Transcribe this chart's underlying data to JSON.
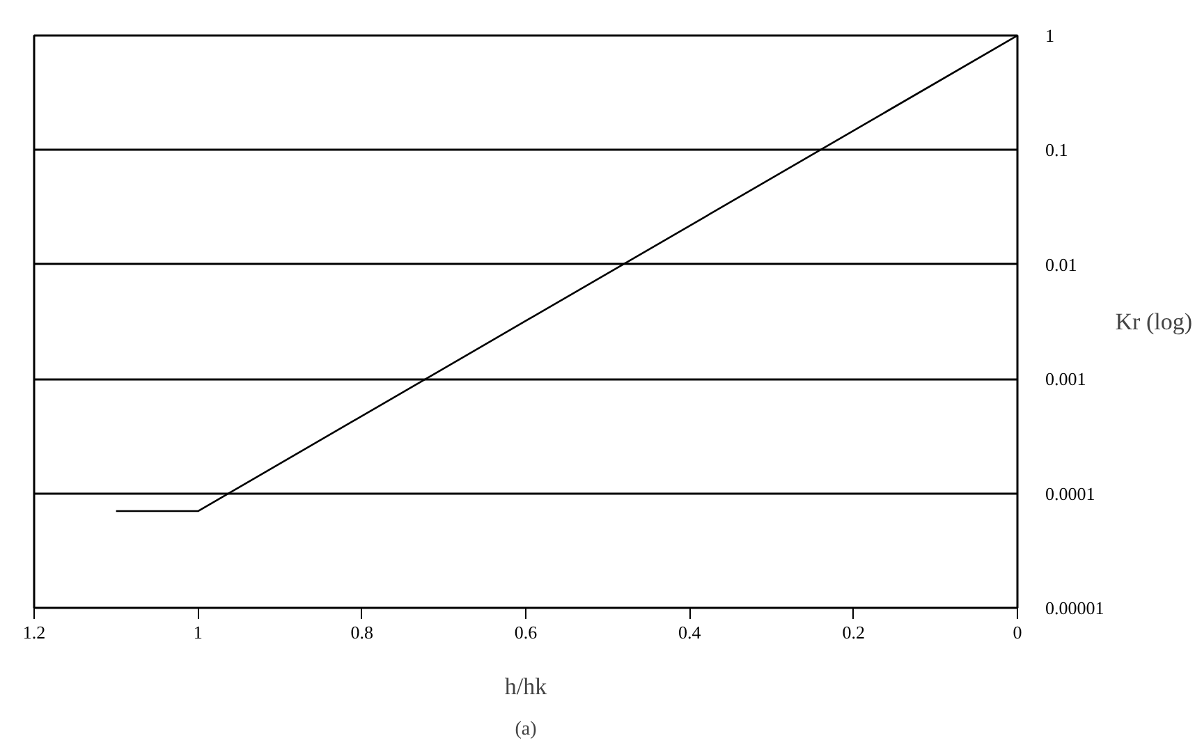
{
  "chart_data": {
    "type": "line",
    "xlabel": "h/hk",
    "ylabel": "Kr (log)",
    "annotations": [
      "(a)"
    ],
    "x": [
      1.1,
      1.0,
      0
    ],
    "series": [
      {
        "color": "#000000",
        "values": [
          7e-05,
          7e-05,
          1
        ]
      }
    ],
    "xlim": [
      1.2,
      0
    ],
    "xticks": [
      1.2,
      1,
      0.8,
      0.6,
      0.4,
      0.2,
      0
    ],
    "ylim": [
      1e-05,
      1
    ],
    "yticks": [
      {
        "value": 1e-05,
        "label": "0.00001"
      },
      0.0001,
      0.001,
      0.01,
      0.1,
      1
    ],
    "log": "y",
    "grid": "y",
    "marker": "none",
    "line_style": "solid"
  }
}
